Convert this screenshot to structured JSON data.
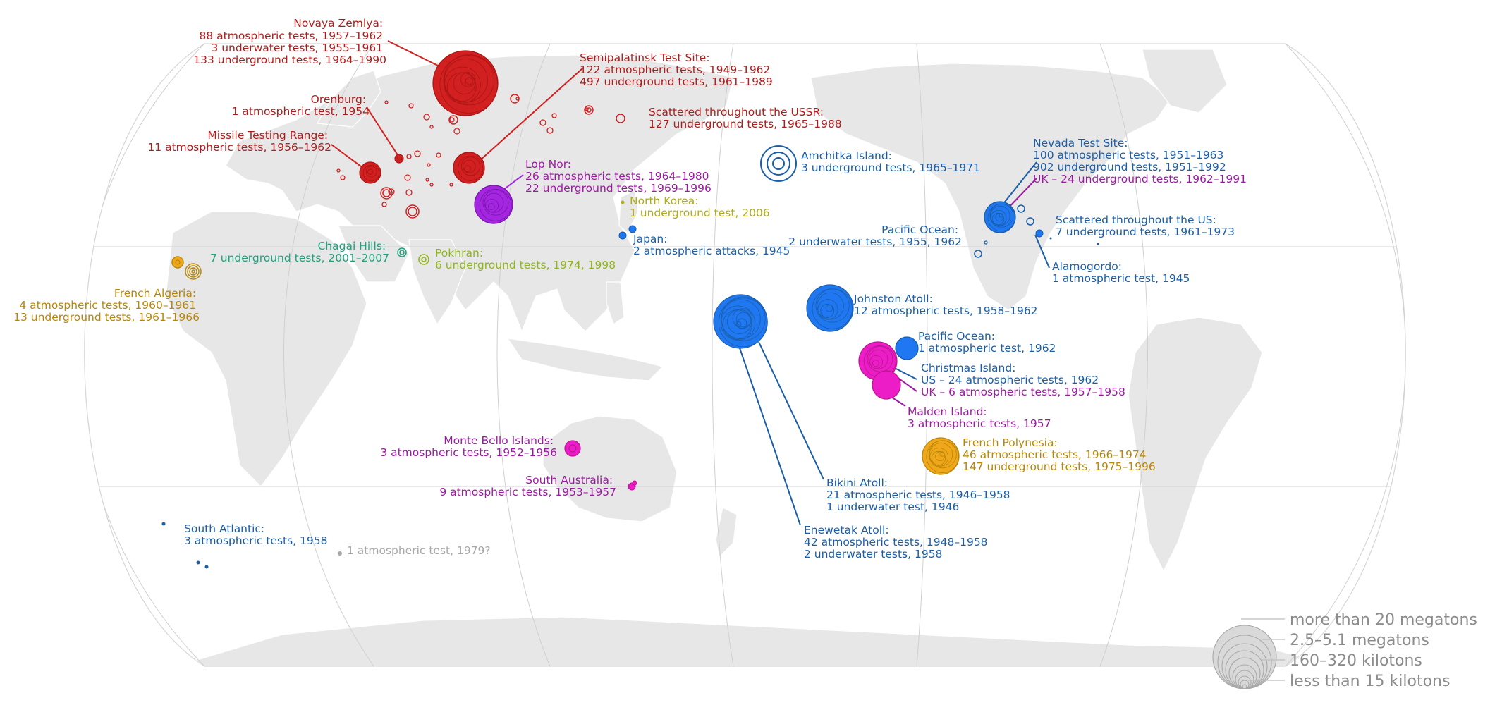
{
  "colors": {
    "ussr": "#d21f1f",
    "us": "#1a5ea8",
    "us_bright": "#1f77f2",
    "uk": "#9b1aa1",
    "uk_bright": "#ec1cc6",
    "china": "#a426e0",
    "france": "#b7860b",
    "france_bright": "#f0a81a",
    "india": "#8fb51b",
    "pakistan": "#1aa37c",
    "north_korea": "#b0ad17",
    "unknown": "#a8a8a8",
    "land": "#e7e7e7",
    "graticule": "#d0d0d0"
  },
  "labels": {
    "novaya": [
      "Novaya Zemlya:",
      "88 atmospheric tests, 1957–1962",
      "3 underwater tests, 1955–1961",
      "133 underground tests, 1964–1990"
    ],
    "orenburg": [
      "Orenburg:",
      "1 atmospheric test, 1954"
    ],
    "missile": [
      "Missile Testing Range:",
      "11 atmospheric tests, 1956–1962"
    ],
    "semipalatinsk": [
      "Semipalatinsk Test Site:",
      "122 atmospheric tests, 1949–1962",
      "497 underground tests, 1961–1989"
    ],
    "scattered_ussr": [
      "Scattered throughout the USSR:",
      "127 underground tests, 1965–1988"
    ],
    "lopnor": [
      "Lop Nor:",
      "26 atmospheric tests, 1964–1980",
      "22 underground tests, 1969–1996"
    ],
    "northkorea": [
      "North Korea:",
      "1 underground test, 2006"
    ],
    "japan": [
      "Japan:",
      "2 atmospheric attacks, 1945"
    ],
    "chagai": [
      "Chagai Hills:",
      "7 underground tests, 2001–2007"
    ],
    "pokhran": [
      "Pokhran:",
      "6 underground tests, 1974, 1998"
    ],
    "algeria": [
      "French Algeria:",
      "4 atmospheric tests, 1960–1961",
      "13 underground tests, 1961–1966"
    ],
    "amchitka": [
      "Amchitka Island:",
      "3 underground tests, 1965–1971"
    ],
    "nevada": [
      "Nevada Test Site:",
      "100 atmospheric tests, 1951–1963",
      "902 underground tests, 1951–1992"
    ],
    "nevada_uk": "UK – 24 underground tests, 1962–1991",
    "scattered_us": [
      "Scattered throughout the US:",
      "7 underground tests, 1961–1973"
    ],
    "pacific_uw": [
      "Pacific Ocean:",
      "2 underwater tests, 1955, 1962"
    ],
    "alamogordo": [
      "Alamogordo:",
      "1 atmospheric test, 1945"
    ],
    "johnston": [
      "Johnston Atoll:",
      "12 atmospheric tests, 1958–1962"
    ],
    "pacific_atm": [
      "Pacific Ocean:",
      "1 atmospheric test, 1962"
    ],
    "christmas": [
      "Christmas Island:",
      "US – 24 atmospheric tests, 1962"
    ],
    "christmas_uk": "UK – 6 atmospheric tests, 1957–1958",
    "malden": [
      "Malden Island:",
      "3 atmospheric tests, 1957"
    ],
    "polynesia": [
      "French Polynesia:",
      "46 atmospheric tests, 1966–1974",
      "147 underground tests, 1975–1996"
    ],
    "montebello": [
      "Monte Bello Islands:",
      "3 atmospheric tests, 1952–1956"
    ],
    "southaus": [
      "South Australia:",
      "9 atmospheric tests, 1953–1957"
    ],
    "bikini": [
      "Bikini Atoll:",
      "21 atmospheric tests, 1946–1958",
      "1 underwater test, 1946"
    ],
    "enewetak": [
      "Enewetak Atoll:",
      "42 atmospheric tests, 1948–1958",
      "2 underwater tests, 1958"
    ],
    "southatlantic": [
      "South Atlantic:",
      "3 atmospheric tests, 1958"
    ],
    "unknown": "1 atmospheric test, 1979?"
  },
  "legend": [
    "more than 20 megatons",
    "2.5–5.1 megatons",
    "160–320 kilotons",
    "less than 15 kilotons"
  ]
}
